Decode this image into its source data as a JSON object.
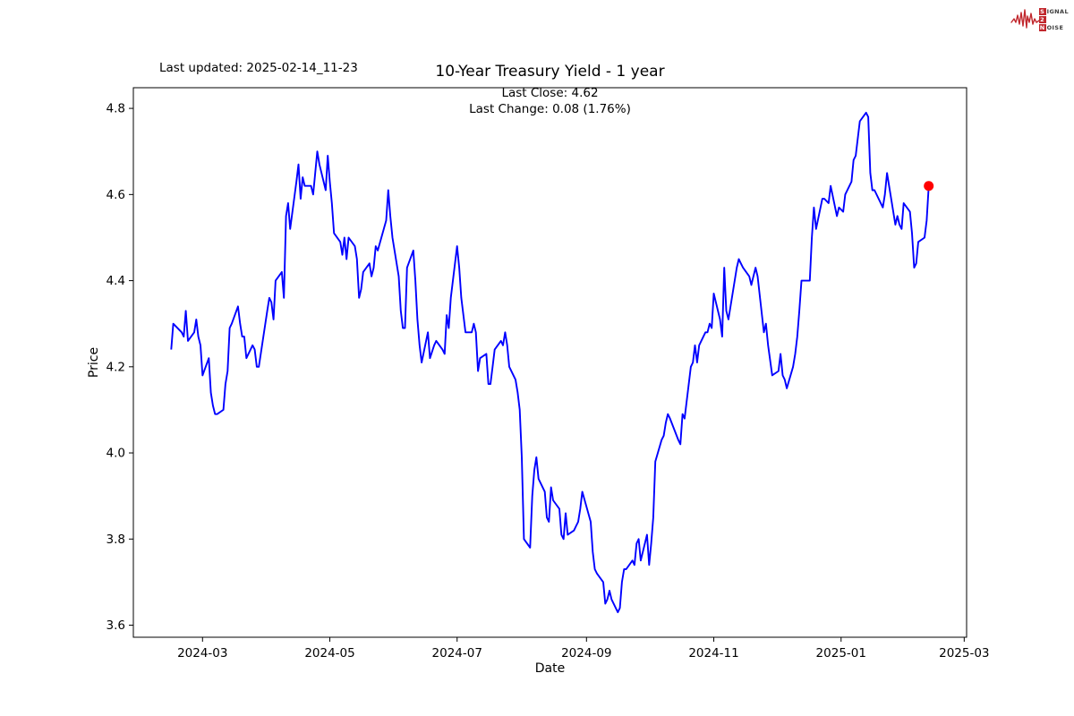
{
  "header": {
    "last_updated": "Last updated: 2025-02-14_11-23"
  },
  "logo": {
    "name": "signal-2-noise",
    "line1_initial": "S",
    "line1_rest": "IGNAL",
    "line2": "2",
    "line3_initial": "N",
    "line3_rest": "OISE",
    "accent_color": "#c1272d"
  },
  "chart_data": {
    "type": "line",
    "title": "10-Year Treasury Yield - 1 year",
    "subtitle_lines": [
      "Last Close: 4.62",
      "Last Change: 0.08 (1.76%)"
    ],
    "xlabel": "Date",
    "ylabel": "Price",
    "last_close": 4.62,
    "last_change": 0.08,
    "last_change_pct": "1.76%",
    "line_color": "#0000ff",
    "marker_color": "#ff0000",
    "grid": false,
    "ylim": [
      3.572,
      4.848
    ],
    "y_ticks": [
      3.6,
      3.8,
      4.0,
      4.2,
      4.4,
      4.6,
      4.8
    ],
    "x_ticks": [
      "2024-03-01",
      "2024-05-01",
      "2024-07-01",
      "2024-09-01",
      "2024-11-01",
      "2025-01-01",
      "2025-03-01"
    ],
    "x_tick_labels": [
      "2024-03",
      "2024-05",
      "2024-07",
      "2024-09",
      "2024-11",
      "2025-01",
      "2025-03"
    ],
    "series": [
      {
        "name": "10-Year Treasury Yield",
        "points": [
          [
            "2024-02-15",
            4.24
          ],
          [
            "2024-02-16",
            4.3
          ],
          [
            "2024-02-20",
            4.28
          ],
          [
            "2024-02-21",
            4.27
          ],
          [
            "2024-02-22",
            4.33
          ],
          [
            "2024-02-23",
            4.26
          ],
          [
            "2024-02-26",
            4.28
          ],
          [
            "2024-02-27",
            4.31
          ],
          [
            "2024-02-28",
            4.27
          ],
          [
            "2024-02-29",
            4.25
          ],
          [
            "2024-03-01",
            4.18
          ],
          [
            "2024-03-04",
            4.22
          ],
          [
            "2024-03-05",
            4.14
          ],
          [
            "2024-03-06",
            4.11
          ],
          [
            "2024-03-07",
            4.09
          ],
          [
            "2024-03-08",
            4.09
          ],
          [
            "2024-03-11",
            4.1
          ],
          [
            "2024-03-12",
            4.16
          ],
          [
            "2024-03-13",
            4.19
          ],
          [
            "2024-03-14",
            4.29
          ],
          [
            "2024-03-15",
            4.3
          ],
          [
            "2024-03-18",
            4.34
          ],
          [
            "2024-03-19",
            4.3
          ],
          [
            "2024-03-20",
            4.27
          ],
          [
            "2024-03-21",
            4.27
          ],
          [
            "2024-03-22",
            4.22
          ],
          [
            "2024-03-25",
            4.25
          ],
          [
            "2024-03-26",
            4.24
          ],
          [
            "2024-03-27",
            4.2
          ],
          [
            "2024-03-28",
            4.2
          ],
          [
            "2024-04-01",
            4.33
          ],
          [
            "2024-04-02",
            4.36
          ],
          [
            "2024-04-03",
            4.35
          ],
          [
            "2024-04-04",
            4.31
          ],
          [
            "2024-04-05",
            4.4
          ],
          [
            "2024-04-08",
            4.42
          ],
          [
            "2024-04-09",
            4.36
          ],
          [
            "2024-04-10",
            4.55
          ],
          [
            "2024-04-11",
            4.58
          ],
          [
            "2024-04-12",
            4.52
          ],
          [
            "2024-04-15",
            4.63
          ],
          [
            "2024-04-16",
            4.67
          ],
          [
            "2024-04-17",
            4.59
          ],
          [
            "2024-04-18",
            4.64
          ],
          [
            "2024-04-19",
            4.62
          ],
          [
            "2024-04-22",
            4.62
          ],
          [
            "2024-04-23",
            4.6
          ],
          [
            "2024-04-24",
            4.65
          ],
          [
            "2024-04-25",
            4.7
          ],
          [
            "2024-04-26",
            4.67
          ],
          [
            "2024-04-29",
            4.61
          ],
          [
            "2024-04-30",
            4.69
          ],
          [
            "2024-05-01",
            4.63
          ],
          [
            "2024-05-02",
            4.58
          ],
          [
            "2024-05-03",
            4.51
          ],
          [
            "2024-05-06",
            4.49
          ],
          [
            "2024-05-07",
            4.46
          ],
          [
            "2024-05-08",
            4.5
          ],
          [
            "2024-05-09",
            4.45
          ],
          [
            "2024-05-10",
            4.5
          ],
          [
            "2024-05-13",
            4.48
          ],
          [
            "2024-05-14",
            4.45
          ],
          [
            "2024-05-15",
            4.36
          ],
          [
            "2024-05-16",
            4.38
          ],
          [
            "2024-05-17",
            4.42
          ],
          [
            "2024-05-20",
            4.44
          ],
          [
            "2024-05-21",
            4.41
          ],
          [
            "2024-05-22",
            4.43
          ],
          [
            "2024-05-23",
            4.48
          ],
          [
            "2024-05-24",
            4.47
          ],
          [
            "2024-05-28",
            4.54
          ],
          [
            "2024-05-29",
            4.61
          ],
          [
            "2024-05-30",
            4.55
          ],
          [
            "2024-05-31",
            4.5
          ],
          [
            "2024-06-03",
            4.41
          ],
          [
            "2024-06-04",
            4.33
          ],
          [
            "2024-06-05",
            4.29
          ],
          [
            "2024-06-06",
            4.29
          ],
          [
            "2024-06-07",
            4.43
          ],
          [
            "2024-06-10",
            4.47
          ],
          [
            "2024-06-11",
            4.4
          ],
          [
            "2024-06-12",
            4.31
          ],
          [
            "2024-06-13",
            4.25
          ],
          [
            "2024-06-14",
            4.21
          ],
          [
            "2024-06-17",
            4.28
          ],
          [
            "2024-06-18",
            4.22
          ],
          [
            "2024-06-20",
            4.25
          ],
          [
            "2024-06-21",
            4.26
          ],
          [
            "2024-06-24",
            4.24
          ],
          [
            "2024-06-25",
            4.23
          ],
          [
            "2024-06-26",
            4.32
          ],
          [
            "2024-06-27",
            4.29
          ],
          [
            "2024-06-28",
            4.36
          ],
          [
            "2024-07-01",
            4.48
          ],
          [
            "2024-07-02",
            4.43
          ],
          [
            "2024-07-03",
            4.36
          ],
          [
            "2024-07-05",
            4.28
          ],
          [
            "2024-07-08",
            4.28
          ],
          [
            "2024-07-09",
            4.3
          ],
          [
            "2024-07-10",
            4.28
          ],
          [
            "2024-07-11",
            4.19
          ],
          [
            "2024-07-12",
            4.22
          ],
          [
            "2024-07-15",
            4.23
          ],
          [
            "2024-07-16",
            4.16
          ],
          [
            "2024-07-17",
            4.16
          ],
          [
            "2024-07-18",
            4.2
          ],
          [
            "2024-07-19",
            4.24
          ],
          [
            "2024-07-22",
            4.26
          ],
          [
            "2024-07-23",
            4.25
          ],
          [
            "2024-07-24",
            4.28
          ],
          [
            "2024-07-25",
            4.25
          ],
          [
            "2024-07-26",
            4.2
          ],
          [
            "2024-07-29",
            4.17
          ],
          [
            "2024-07-30",
            4.14
          ],
          [
            "2024-07-31",
            4.1
          ],
          [
            "2024-08-01",
            3.99
          ],
          [
            "2024-08-02",
            3.8
          ],
          [
            "2024-08-05",
            3.78
          ],
          [
            "2024-08-06",
            3.9
          ],
          [
            "2024-08-07",
            3.96
          ],
          [
            "2024-08-08",
            3.99
          ],
          [
            "2024-08-09",
            3.94
          ],
          [
            "2024-08-12",
            3.91
          ],
          [
            "2024-08-13",
            3.85
          ],
          [
            "2024-08-14",
            3.84
          ],
          [
            "2024-08-15",
            3.92
          ],
          [
            "2024-08-16",
            3.89
          ],
          [
            "2024-08-19",
            3.87
          ],
          [
            "2024-08-20",
            3.81
          ],
          [
            "2024-08-21",
            3.8
          ],
          [
            "2024-08-22",
            3.86
          ],
          [
            "2024-08-23",
            3.81
          ],
          [
            "2024-08-26",
            3.82
          ],
          [
            "2024-08-27",
            3.83
          ],
          [
            "2024-08-28",
            3.84
          ],
          [
            "2024-08-29",
            3.87
          ],
          [
            "2024-08-30",
            3.91
          ],
          [
            "2024-09-03",
            3.84
          ],
          [
            "2024-09-04",
            3.77
          ],
          [
            "2024-09-05",
            3.73
          ],
          [
            "2024-09-06",
            3.72
          ],
          [
            "2024-09-09",
            3.7
          ],
          [
            "2024-09-10",
            3.65
          ],
          [
            "2024-09-11",
            3.66
          ],
          [
            "2024-09-12",
            3.68
          ],
          [
            "2024-09-13",
            3.66
          ],
          [
            "2024-09-16",
            3.63
          ],
          [
            "2024-09-17",
            3.64
          ],
          [
            "2024-09-18",
            3.7
          ],
          [
            "2024-09-19",
            3.73
          ],
          [
            "2024-09-20",
            3.73
          ],
          [
            "2024-09-23",
            3.75
          ],
          [
            "2024-09-24",
            3.74
          ],
          [
            "2024-09-25",
            3.79
          ],
          [
            "2024-09-26",
            3.8
          ],
          [
            "2024-09-27",
            3.75
          ],
          [
            "2024-09-30",
            3.81
          ],
          [
            "2024-10-01",
            3.74
          ],
          [
            "2024-10-02",
            3.79
          ],
          [
            "2024-10-03",
            3.85
          ],
          [
            "2024-10-04",
            3.98
          ],
          [
            "2024-10-07",
            4.03
          ],
          [
            "2024-10-08",
            4.04
          ],
          [
            "2024-10-09",
            4.07
          ],
          [
            "2024-10-10",
            4.09
          ],
          [
            "2024-10-11",
            4.08
          ],
          [
            "2024-10-15",
            4.03
          ],
          [
            "2024-10-16",
            4.02
          ],
          [
            "2024-10-17",
            4.09
          ],
          [
            "2024-10-18",
            4.08
          ],
          [
            "2024-10-21",
            4.2
          ],
          [
            "2024-10-22",
            4.21
          ],
          [
            "2024-10-23",
            4.25
          ],
          [
            "2024-10-24",
            4.21
          ],
          [
            "2024-10-25",
            4.25
          ],
          [
            "2024-10-28",
            4.28
          ],
          [
            "2024-10-29",
            4.28
          ],
          [
            "2024-10-30",
            4.3
          ],
          [
            "2024-10-31",
            4.29
          ],
          [
            "2024-11-01",
            4.37
          ],
          [
            "2024-11-04",
            4.31
          ],
          [
            "2024-11-05",
            4.27
          ],
          [
            "2024-11-06",
            4.43
          ],
          [
            "2024-11-07",
            4.33
          ],
          [
            "2024-11-08",
            4.31
          ],
          [
            "2024-11-12",
            4.43
          ],
          [
            "2024-11-13",
            4.45
          ],
          [
            "2024-11-14",
            4.44
          ],
          [
            "2024-11-15",
            4.43
          ],
          [
            "2024-11-18",
            4.41
          ],
          [
            "2024-11-19",
            4.39
          ],
          [
            "2024-11-20",
            4.41
          ],
          [
            "2024-11-21",
            4.43
          ],
          [
            "2024-11-22",
            4.41
          ],
          [
            "2024-11-25",
            4.28
          ],
          [
            "2024-11-26",
            4.3
          ],
          [
            "2024-11-27",
            4.25
          ],
          [
            "2024-11-29",
            4.18
          ],
          [
            "2024-12-02",
            4.19
          ],
          [
            "2024-12-03",
            4.23
          ],
          [
            "2024-12-04",
            4.18
          ],
          [
            "2024-12-05",
            4.17
          ],
          [
            "2024-12-06",
            4.15
          ],
          [
            "2024-12-09",
            4.2
          ],
          [
            "2024-12-10",
            4.23
          ],
          [
            "2024-12-11",
            4.27
          ],
          [
            "2024-12-12",
            4.33
          ],
          [
            "2024-12-13",
            4.4
          ],
          [
            "2024-12-16",
            4.4
          ],
          [
            "2024-12-17",
            4.4
          ],
          [
            "2024-12-18",
            4.5
          ],
          [
            "2024-12-19",
            4.57
          ],
          [
            "2024-12-20",
            4.52
          ],
          [
            "2024-12-23",
            4.59
          ],
          [
            "2024-12-24",
            4.59
          ],
          [
            "2024-12-26",
            4.58
          ],
          [
            "2024-12-27",
            4.62
          ],
          [
            "2024-12-30",
            4.55
          ],
          [
            "2024-12-31",
            4.57
          ],
          [
            "2025-01-02",
            4.56
          ],
          [
            "2025-01-03",
            4.6
          ],
          [
            "2025-01-06",
            4.63
          ],
          [
            "2025-01-07",
            4.68
          ],
          [
            "2025-01-08",
            4.69
          ],
          [
            "2025-01-10",
            4.77
          ],
          [
            "2025-01-13",
            4.79
          ],
          [
            "2025-01-14",
            4.78
          ],
          [
            "2025-01-15",
            4.65
          ],
          [
            "2025-01-16",
            4.61
          ],
          [
            "2025-01-17",
            4.61
          ],
          [
            "2025-01-21",
            4.57
          ],
          [
            "2025-01-22",
            4.6
          ],
          [
            "2025-01-23",
            4.65
          ],
          [
            "2025-01-24",
            4.62
          ],
          [
            "2025-01-27",
            4.53
          ],
          [
            "2025-01-28",
            4.55
          ],
          [
            "2025-01-29",
            4.53
          ],
          [
            "2025-01-30",
            4.52
          ],
          [
            "2025-01-31",
            4.58
          ],
          [
            "2025-02-03",
            4.56
          ],
          [
            "2025-02-04",
            4.51
          ],
          [
            "2025-02-05",
            4.43
          ],
          [
            "2025-02-06",
            4.44
          ],
          [
            "2025-02-07",
            4.49
          ],
          [
            "2025-02-10",
            4.5
          ],
          [
            "2025-02-11",
            4.54
          ],
          [
            "2025-02-12",
            4.62
          ]
        ]
      }
    ]
  }
}
